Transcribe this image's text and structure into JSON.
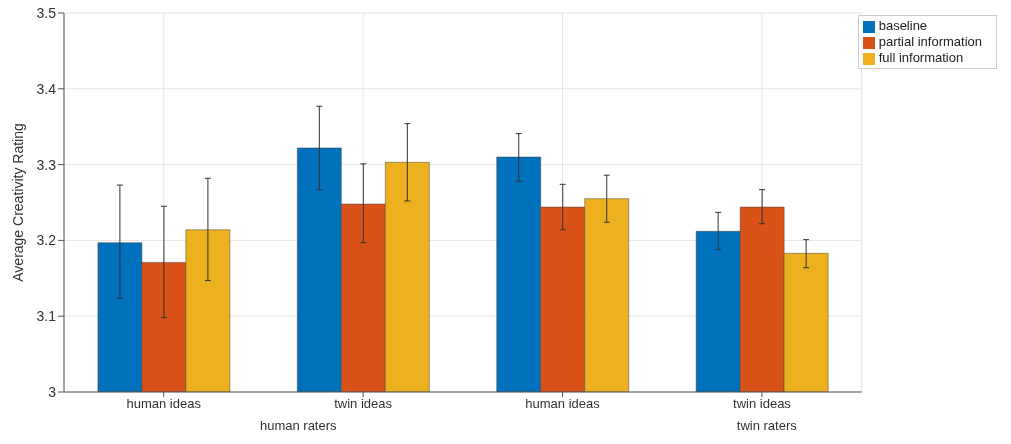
{
  "chart_data": {
    "type": "bar",
    "ylabel": "Average Creativity Rating",
    "categories": [
      "human ideas",
      "twin ideas",
      "human ideas",
      "twin ideas"
    ],
    "series": [
      {
        "name": "baseline",
        "color": "#0072bd",
        "values": [
          3.197,
          3.322,
          3.31,
          3.212
        ],
        "errors": [
          [
            3.124,
            3.273
          ],
          [
            3.267,
            3.377
          ],
          [
            3.278,
            3.341
          ],
          [
            3.188,
            3.237
          ]
        ]
      },
      {
        "name": "partial information",
        "color": "#d95319",
        "values": [
          3.171,
          3.248,
          3.244,
          3.244
        ],
        "errors": [
          [
            3.098,
            3.245
          ],
          [
            3.197,
            3.301
          ],
          [
            3.214,
            3.274
          ],
          [
            3.222,
            3.267
          ]
        ]
      },
      {
        "name": "full information",
        "color": "#edb120",
        "values": [
          3.214,
          3.303,
          3.255,
          3.183
        ],
        "errors": [
          [
            3.147,
            3.282
          ],
          [
            3.252,
            3.354
          ],
          [
            3.224,
            3.286
          ],
          [
            3.164,
            3.201
          ]
        ]
      }
    ],
    "annotations": [
      "human raters",
      "twin raters"
    ],
    "ylim": [
      3,
      3.5
    ],
    "yticks": [
      3,
      3.1,
      3.2,
      3.3,
      3.4,
      3.5
    ],
    "grid": true,
    "legend": "top right"
  }
}
